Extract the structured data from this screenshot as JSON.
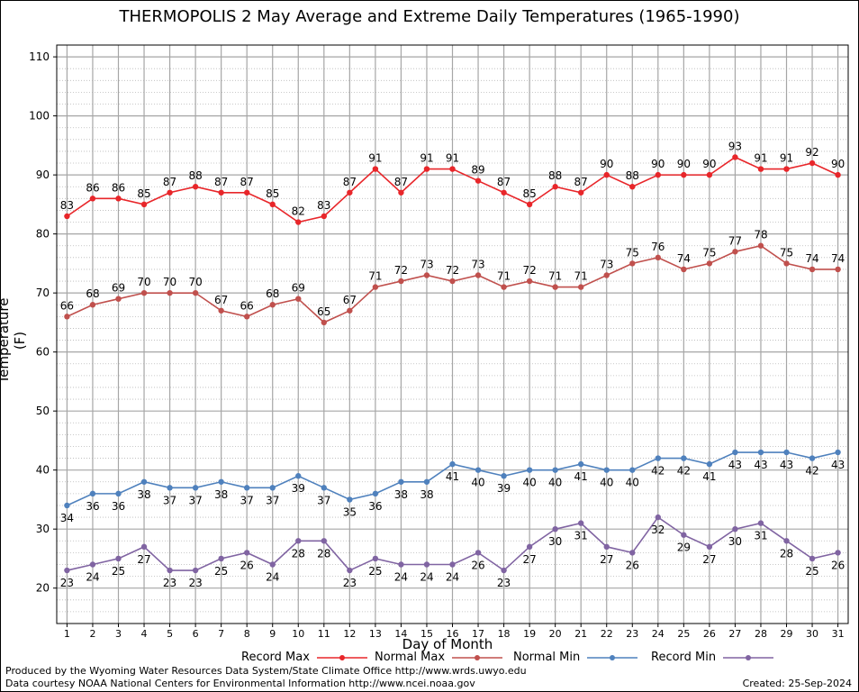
{
  "title": "THERMOPOLIS 2 May Average and Extreme Daily Temperatures (1965-1990)",
  "footer": {
    "line1": "Produced by the Wyoming Water Resources Data System/State Climate Office http://www.wrds.uwyo.edu",
    "line2": "Data courtesy NOAA National Centers for Environmental Information http://www.ncei.noaa.gov",
    "created": "Created:  25-Sep-2024"
  },
  "chart_data": {
    "type": "line",
    "title": "THERMOPOLIS 2 May Average and Extreme Daily Temperatures (1965-1990)",
    "xlabel": "Day of Month",
    "ylabel": "Temperature (F)",
    "x": [
      1,
      2,
      3,
      4,
      5,
      6,
      7,
      8,
      9,
      10,
      11,
      12,
      13,
      14,
      15,
      16,
      17,
      18,
      19,
      20,
      21,
      22,
      23,
      24,
      25,
      26,
      27,
      28,
      29,
      30,
      31
    ],
    "xlim": [
      0.6,
      31.4
    ],
    "ylim": [
      14,
      112
    ],
    "yticks": [
      20,
      30,
      40,
      50,
      60,
      70,
      80,
      90,
      100,
      110
    ],
    "grid": true,
    "legend_position": "bottom",
    "series": [
      {
        "name": "Record Max",
        "color": "#e8262a",
        "label_pos": "above",
        "values": [
          83,
          86,
          86,
          85,
          87,
          88,
          87,
          87,
          85,
          82,
          83,
          87,
          91,
          87,
          91,
          91,
          89,
          87,
          85,
          88,
          87,
          90,
          88,
          90,
          90,
          90,
          93,
          91,
          91,
          92,
          90
        ]
      },
      {
        "name": "Normal Max",
        "color": "#c0504d",
        "label_pos": "above",
        "values": [
          66,
          68,
          69,
          70,
          70,
          70,
          67,
          66,
          68,
          69,
          65,
          67,
          71,
          72,
          73,
          72,
          73,
          71,
          72,
          71,
          71,
          73,
          75,
          76,
          74,
          75,
          77,
          78,
          75,
          74,
          74
        ]
      },
      {
        "name": "Normal Min",
        "color": "#4f81bd",
        "label_pos": "below",
        "values": [
          34,
          36,
          36,
          38,
          37,
          37,
          38,
          37,
          37,
          39,
          37,
          35,
          36,
          38,
          38,
          41,
          40,
          39,
          40,
          40,
          41,
          40,
          40,
          42,
          42,
          41,
          43,
          43,
          43,
          42,
          43
        ]
      },
      {
        "name": "Record Min",
        "color": "#8064a2",
        "label_pos": "below",
        "values": [
          23,
          24,
          25,
          27,
          23,
          23,
          25,
          26,
          24,
          28,
          28,
          23,
          25,
          24,
          24,
          24,
          26,
          23,
          27,
          30,
          31,
          27,
          26,
          32,
          29,
          27,
          30,
          31,
          28,
          25,
          26
        ]
      }
    ]
  }
}
